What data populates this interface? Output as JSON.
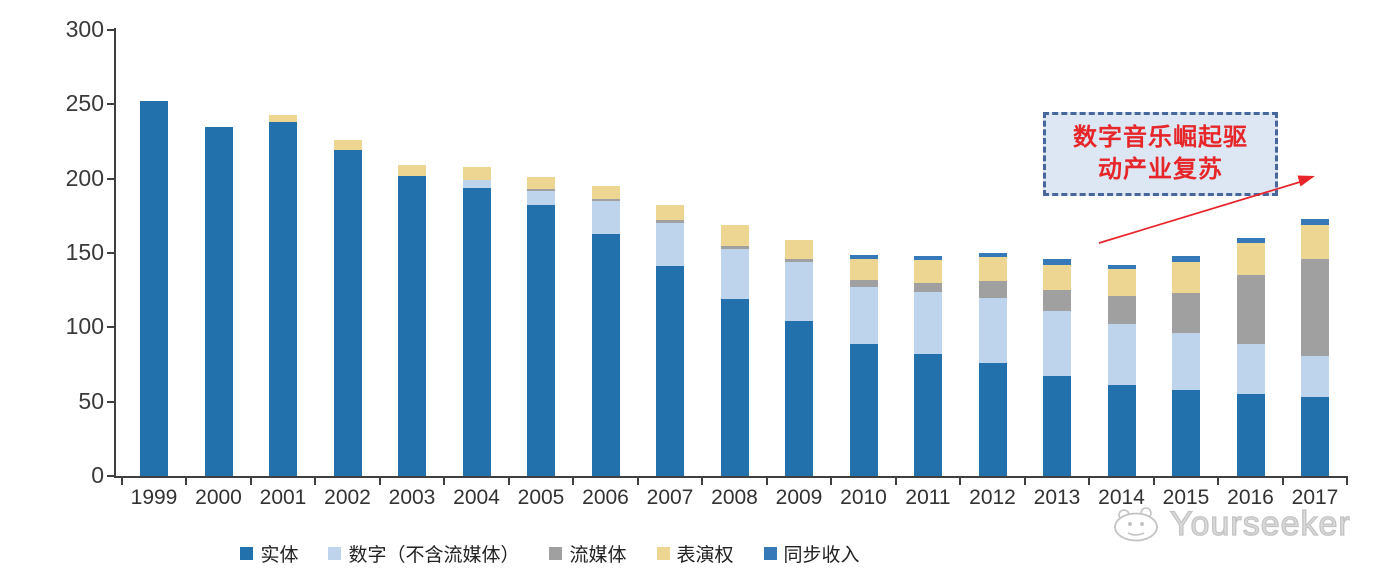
{
  "chart_data": {
    "type": "bar",
    "stacked": true,
    "title": "",
    "xlabel": "",
    "ylabel": "",
    "ylim": [
      0,
      300
    ],
    "yticks": [
      0,
      50,
      100,
      150,
      200,
      250,
      300
    ],
    "grid": false,
    "legend_position": "bottom",
    "categories": [
      "1999",
      "2000",
      "2001",
      "2002",
      "2003",
      "2004",
      "2005",
      "2006",
      "2007",
      "2008",
      "2009",
      "2010",
      "2011",
      "2012",
      "2013",
      "2014",
      "2015",
      "2016",
      "2017"
    ],
    "series": [
      {
        "key": "physical",
        "name": "实体",
        "color": "#2271ac",
        "values": [
          252,
          235,
          238,
          219,
          202,
          194,
          182,
          163,
          141,
          119,
          104,
          89,
          82,
          76,
          67,
          61,
          58,
          55,
          53
        ]
      },
      {
        "key": "digital",
        "name": "数字（不含流媒体）",
        "color": "#bdd4ec",
        "values": [
          0,
          0,
          0,
          0,
          0,
          5,
          10,
          22,
          29,
          34,
          40,
          38,
          42,
          44,
          44,
          41,
          38,
          34,
          28
        ]
      },
      {
        "key": "streaming",
        "name": "流媒体",
        "color": "#a0a0a0",
        "values": [
          0,
          0,
          0,
          0,
          0,
          0,
          1,
          1,
          2,
          2,
          2,
          5,
          6,
          11,
          14,
          19,
          27,
          46,
          65
        ]
      },
      {
        "key": "performance",
        "name": "表演权",
        "color": "#edd691",
        "values": [
          0,
          0,
          5,
          7,
          7,
          9,
          8,
          9,
          10,
          14,
          13,
          14,
          15,
          16,
          17,
          18,
          21,
          22,
          23
        ]
      },
      {
        "key": "sync",
        "name": "同步收入",
        "color": "#3579b8",
        "values": [
          0,
          0,
          0,
          0,
          0,
          0,
          0,
          0,
          0,
          0,
          0,
          3,
          3,
          3,
          4,
          3,
          4,
          3,
          4
        ]
      }
    ]
  },
  "annotation": {
    "line1": "数字音乐崛起驱",
    "line2": "动产业复苏",
    "text_color": "#e62629",
    "box_fill": "#dde7f4",
    "box_border": "#46669c",
    "arrow_color": "#e8252a"
  },
  "watermark": {
    "text": "Yourseeker",
    "color": "#c3c3c3"
  },
  "colors": {
    "axis": "#3f3f3f",
    "background": "#ffffff"
  }
}
